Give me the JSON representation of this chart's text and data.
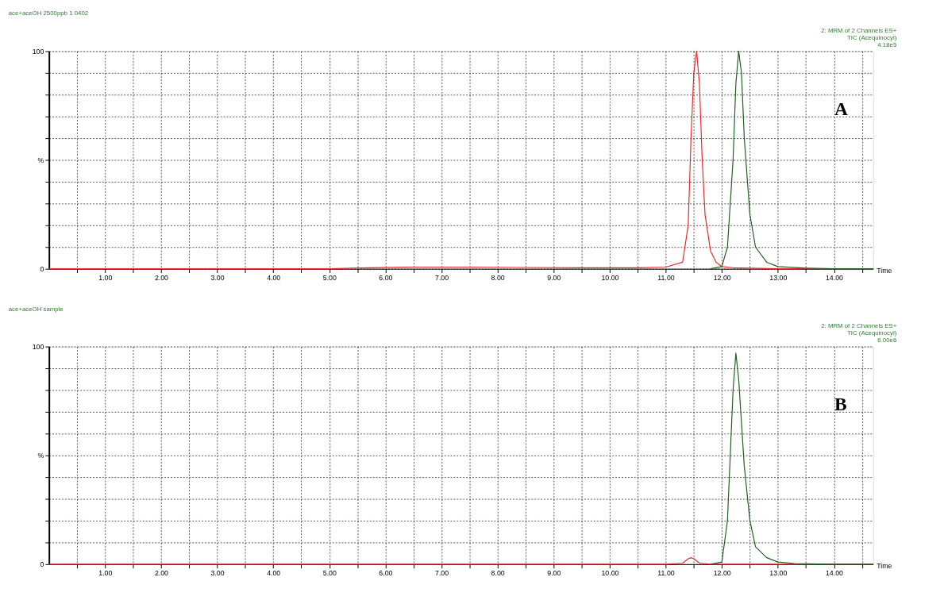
{
  "chart_data": [
    {
      "type": "line",
      "title": "ace+aceOH 2500ppb 1 0402",
      "xlabel": "Time",
      "annotations": [
        "2: MRM of 2 Channels ES+",
        "TIC (Acequinocyl)",
        "4.18e5",
        "A"
      ],
      "xlim": [
        0,
        14.7
      ],
      "ylim": [
        0,
        100
      ],
      "grid": true,
      "legend": false,
      "line_style": "solid",
      "marker": "none",
      "xticks": [
        {
          "value": 0.5,
          "label": null
        },
        {
          "value": 1,
          "label": "1.00"
        },
        {
          "value": 1.5,
          "label": null
        },
        {
          "value": 2,
          "label": "2.00"
        },
        {
          "value": 2.5,
          "label": null
        },
        {
          "value": 3,
          "label": "3.00"
        },
        {
          "value": 3.5,
          "label": null
        },
        {
          "value": 4,
          "label": "4.00"
        },
        {
          "value": 4.5,
          "label": null
        },
        {
          "value": 5,
          "label": "5.00"
        },
        {
          "value": 5.5,
          "label": null
        },
        {
          "value": 6,
          "label": "6.00"
        },
        {
          "value": 6.5,
          "label": null
        },
        {
          "value": 7,
          "label": "7.00"
        },
        {
          "value": 7.5,
          "label": null
        },
        {
          "value": 8,
          "label": "8.00"
        },
        {
          "value": 8.5,
          "label": null
        },
        {
          "value": 9,
          "label": "9.00"
        },
        {
          "value": 9.5,
          "label": null
        },
        {
          "value": 10,
          "label": "10.00"
        },
        {
          "value": 10.5,
          "label": null
        },
        {
          "value": 11,
          "label": "11.00"
        },
        {
          "value": 11.5,
          "label": null
        },
        {
          "value": 12,
          "label": "12.00"
        },
        {
          "value": 12.5,
          "label": null
        },
        {
          "value": 13,
          "label": "13.00"
        },
        {
          "value": 13.5,
          "label": null
        },
        {
          "value": 14,
          "label": "14.00"
        },
        {
          "value": 14.5,
          "label": null
        }
      ],
      "yticks": [
        0,
        {
          "value": 10,
          "label": null
        },
        {
          "value": 20,
          "label": null
        },
        {
          "value": 30,
          "label": null
        },
        {
          "value": 40,
          "label": null
        },
        {
          "value": 50,
          "label": "%"
        },
        {
          "value": 60,
          "label": null
        },
        {
          "value": 70,
          "label": null
        },
        {
          "value": 80,
          "label": null
        },
        {
          "value": 90,
          "label": null
        },
        100
      ],
      "series": [
        {
          "color": "#e8282a",
          "x": [
            0,
            1,
            2,
            3,
            4,
            5,
            5.7,
            6.5,
            7.5,
            8.5,
            9.5,
            10.5,
            11.0,
            11.3,
            11.4,
            11.45,
            11.5,
            11.55,
            11.6,
            11.65,
            11.7,
            11.8,
            11.9,
            12.0,
            12.2,
            12.5,
            13,
            14,
            14.7
          ],
          "values": [
            0,
            0,
            0,
            0,
            0,
            0,
            0.5,
            0.8,
            0.8,
            0.6,
            0.5,
            0.5,
            0.8,
            3,
            20,
            60,
            90,
            100,
            85,
            50,
            25,
            8,
            3,
            1,
            0.5,
            0.3,
            0,
            0,
            0
          ]
        },
        {
          "color": "#1f5f1f",
          "x": [
            11.8,
            12.0,
            12.1,
            12.2,
            12.25,
            12.3,
            12.35,
            12.4,
            12.5,
            12.6,
            12.8,
            13.0,
            13.5,
            14,
            14.7
          ],
          "values": [
            0,
            1,
            10,
            50,
            85,
            100,
            90,
            60,
            25,
            10,
            3,
            1,
            0.3,
            0,
            0
          ]
        }
      ]
    },
    {
      "type": "line",
      "title": "ace+aceOH sample",
      "xlabel": "Time",
      "annotations": [
        "2: MRM of 2 Channels ES+",
        "TIC (Acequinocyl)",
        "6.00e6",
        "B"
      ],
      "xlim": [
        0,
        14.7
      ],
      "ylim": [
        0,
        100
      ],
      "grid": true,
      "legend": false,
      "line_style": "solid",
      "marker": "none",
      "xticks": [
        {
          "value": 0.5,
          "label": null
        },
        {
          "value": 1,
          "label": "1.00"
        },
        {
          "value": 1.5,
          "label": null
        },
        {
          "value": 2,
          "label": "2.00"
        },
        {
          "value": 2.5,
          "label": null
        },
        {
          "value": 3,
          "label": "3.00"
        },
        {
          "value": 3.5,
          "label": null
        },
        {
          "value": 4,
          "label": "4.00"
        },
        {
          "value": 4.5,
          "label": null
        },
        {
          "value": 5,
          "label": "5.00"
        },
        {
          "value": 5.5,
          "label": null
        },
        {
          "value": 6,
          "label": "6.00"
        },
        {
          "value": 6.5,
          "label": null
        },
        {
          "value": 7,
          "label": "7.00"
        },
        {
          "value": 7.5,
          "label": null
        },
        {
          "value": 8,
          "label": "8.00"
        },
        {
          "value": 8.5,
          "label": null
        },
        {
          "value": 9,
          "label": "9.00"
        },
        {
          "value": 9.5,
          "label": null
        },
        {
          "value": 10,
          "label": "10.00"
        },
        {
          "value": 10.5,
          "label": null
        },
        {
          "value": 11,
          "label": "11.00"
        },
        {
          "value": 11.5,
          "label": null
        },
        {
          "value": 12,
          "label": "12.00"
        },
        {
          "value": 12.5,
          "label": null
        },
        {
          "value": 13,
          "label": "13.00"
        },
        {
          "value": 13.5,
          "label": null
        },
        {
          "value": 14,
          "label": "14.00"
        },
        {
          "value": 14.5,
          "label": null
        }
      ],
      "yticks": [
        0,
        {
          "value": 10,
          "label": null
        },
        {
          "value": 20,
          "label": null
        },
        {
          "value": 30,
          "label": null
        },
        {
          "value": 40,
          "label": null
        },
        {
          "value": 50,
          "label": "%"
        },
        {
          "value": 60,
          "label": null
        },
        {
          "value": 70,
          "label": null
        },
        {
          "value": 80,
          "label": null
        },
        {
          "value": 90,
          "label": null
        },
        100
      ],
      "series": [
        {
          "color": "#e8282a",
          "x": [
            0,
            2,
            4,
            6,
            8,
            10,
            11.0,
            11.3,
            11.4,
            11.45,
            11.5,
            11.6,
            11.8,
            12.5,
            14,
            14.7
          ],
          "values": [
            0,
            0,
            0,
            0,
            0,
            0,
            0,
            0.5,
            2.5,
            3,
            2.5,
            0.5,
            0,
            0,
            0,
            0
          ]
        },
        {
          "color": "#1f5f1f",
          "x": [
            11.8,
            12.0,
            12.1,
            12.2,
            12.25,
            12.3,
            12.4,
            12.5,
            12.6,
            12.8,
            13.0,
            13.3,
            14,
            14.7
          ],
          "values": [
            0,
            1,
            20,
            80,
            97,
            85,
            45,
            20,
            8,
            3,
            1,
            0.3,
            0,
            0
          ]
        }
      ]
    }
  ]
}
